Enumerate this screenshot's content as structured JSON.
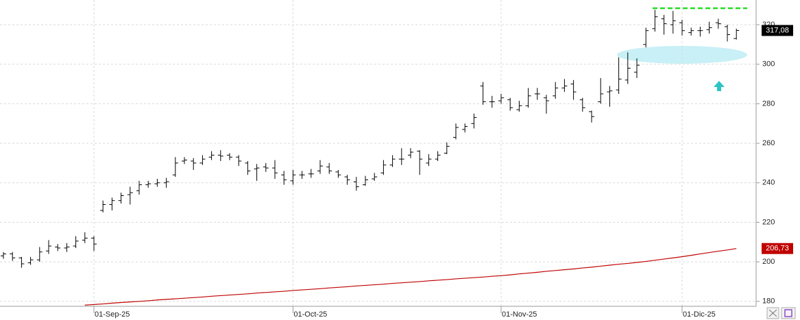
{
  "chart_data": {
    "type": "ohlc",
    "categories": [
      null,
      null,
      null,
      null,
      null,
      null,
      null,
      null,
      null,
      null,
      "01-Sep-25",
      null,
      null,
      null,
      null,
      null,
      null,
      null,
      null,
      null,
      null,
      null,
      null,
      null,
      null,
      null,
      null,
      null,
      null,
      null,
      null,
      null,
      "01-Oct-25",
      null,
      null,
      null,
      null,
      null,
      null,
      null,
      null,
      null,
      null,
      null,
      null,
      null,
      null,
      null,
      null,
      null,
      null,
      null,
      null,
      null,
      null,
      "01-Nov-25",
      null,
      null,
      null,
      null,
      null,
      null,
      null,
      null,
      null,
      null,
      null,
      null,
      null,
      null,
      null,
      null,
      null,
      null,
      null,
      "01-Dic-25",
      null,
      null,
      null,
      null,
      null,
      null
    ],
    "ohlc": {
      "color": "#000000",
      "last_label": "317,08",
      "open": [
        203.0,
        204.0,
        202.0,
        199.5,
        201.0,
        205.5,
        207.5,
        207.0,
        208.0,
        211.0,
        212.0,
        226.0,
        229.0,
        231.0,
        234.0,
        236.0,
        239.0,
        239.5,
        240.0,
        244.0,
        251.0,
        251.0,
        250.0,
        253.0,
        254.0,
        254.0,
        253.0,
        250.0,
        247.0,
        248.0,
        247.5,
        244.0,
        241.0,
        244.0,
        244.5,
        246.0,
        248.0,
        245.5,
        243.0,
        240.5,
        239.0,
        242.0,
        245.0,
        249.0,
        252.0,
        254.0,
        256.0,
        250.0,
        252.0,
        255.0,
        263.0,
        267.0,
        270.0,
        289.0,
        281.0,
        281.5,
        282.0,
        277.0,
        279.0,
        285.0,
        283.0,
        284.0,
        288.0,
        290.0,
        282.0,
        276.0,
        281.0,
        286.0,
        287.0,
        292.0,
        296.0,
        310.0,
        318.0,
        323.0,
        320.0,
        321.0,
        316.0,
        317.0,
        317.5,
        321.0,
        319.0,
        313.0
      ],
      "high": [
        205.0,
        205.0,
        202.5,
        202.5,
        207.5,
        211.0,
        209.0,
        209.5,
        213.0,
        215.0,
        213.0,
        231.0,
        232.5,
        235.0,
        238.0,
        241.0,
        241.0,
        242.0,
        242.5,
        253.0,
        253.0,
        252.5,
        254.0,
        256.0,
        256.5,
        255.0,
        254.0,
        251.0,
        249.5,
        250.0,
        251.5,
        246.0,
        246.5,
        246.0,
        247.0,
        251.5,
        250.0,
        246.5,
        244.0,
        243.0,
        243.5,
        245.0,
        251.5,
        254.0,
        257.5,
        257.5,
        256.5,
        254.5,
        256.0,
        260.5,
        270.0,
        270.0,
        275.0,
        291.0,
        284.0,
        285.0,
        283.0,
        281.5,
        288.0,
        288.0,
        284.5,
        291.0,
        292.5,
        292.0,
        283.0,
        276.5,
        293.0,
        289.0,
        303.5,
        306.0,
        303.0,
        318.5,
        327.5,
        325.0,
        327.0,
        322.5,
        318.5,
        319.0,
        321.5,
        323.0,
        320.0,
        318.0
      ],
      "low": [
        201.5,
        200.5,
        197.0,
        198.5,
        200.0,
        204.0,
        205.5,
        205.0,
        207.0,
        209.5,
        205.5,
        225.0,
        226.0,
        229.5,
        229.0,
        234.0,
        237.5,
        238.0,
        237.5,
        243.0,
        249.5,
        246.5,
        249.0,
        251.5,
        251.0,
        251.5,
        248.5,
        244.0,
        241.0,
        245.5,
        242.0,
        239.0,
        239.0,
        242.0,
        242.5,
        244.5,
        244.5,
        242.5,
        239.0,
        236.0,
        238.5,
        241.0,
        244.0,
        248.0,
        249.0,
        252.5,
        244.0,
        248.5,
        251.0,
        254.5,
        262.0,
        265.5,
        267.5,
        279.5,
        278.0,
        280.0,
        276.5,
        276.0,
        278.0,
        282.0,
        275.0,
        282.5,
        286.0,
        282.0,
        276.0,
        270.5,
        280.0,
        278.5,
        285.0,
        290.0,
        293.0,
        308.5,
        316.5,
        315.0,
        315.5,
        314.5,
        314.5,
        314.0,
        315.5,
        318.0,
        311.5,
        312.5
      ],
      "close": [
        204.0,
        202.0,
        199.0,
        201.0,
        205.0,
        208.0,
        207.0,
        207.5,
        210.5,
        212.0,
        209.0,
        229.0,
        231.0,
        233.5,
        235.0,
        239.0,
        239.5,
        240.0,
        240.5,
        250.0,
        251.5,
        250.0,
        252.0,
        254.0,
        253.5,
        253.0,
        251.0,
        246.0,
        247.5,
        247.5,
        245.0,
        241.5,
        244.0,
        244.0,
        244.5,
        248.5,
        246.0,
        244.0,
        241.5,
        238.0,
        241.5,
        243.0,
        249.0,
        252.0,
        252.0,
        255.5,
        252.0,
        252.0,
        254.0,
        258.5,
        268.0,
        268.5,
        273.0,
        281.0,
        281.0,
        283.0,
        278.0,
        279.0,
        284.0,
        285.0,
        281.5,
        288.0,
        289.0,
        286.0,
        278.0,
        273.5,
        285.0,
        286.5,
        292.5,
        298.0,
        299.5,
        317.0,
        324.0,
        320.5,
        322.0,
        317.0,
        317.0,
        317.0,
        318.5,
        320.5,
        315.0,
        317.08
      ]
    },
    "ma": {
      "color": "#c00000",
      "last_label": "206,73",
      "values": [
        null,
        null,
        null,
        null,
        null,
        null,
        null,
        null,
        null,
        178.1,
        178.4,
        178.7,
        179.1,
        179.4,
        179.7,
        180.0,
        180.3,
        180.7,
        181.0,
        181.3,
        181.6,
        181.9,
        182.2,
        182.6,
        182.9,
        183.2,
        183.5,
        183.8,
        184.2,
        184.5,
        184.8,
        185.1,
        185.5,
        185.8,
        186.1,
        186.4,
        186.8,
        187.1,
        187.4,
        187.8,
        188.1,
        188.4,
        188.7,
        189.1,
        189.4,
        189.7,
        190.0,
        190.4,
        190.7,
        191.0,
        191.4,
        191.7,
        192.0,
        192.3,
        192.7,
        193.0,
        193.4,
        193.9,
        194.3,
        194.7,
        195.2,
        195.6,
        196.0,
        196.4,
        196.9,
        197.3,
        197.8,
        198.3,
        198.8,
        199.2,
        199.7,
        200.2,
        200.8,
        201.4,
        202.0,
        202.6,
        203.3,
        204.0,
        204.7,
        205.4,
        206.0,
        206.73
      ]
    },
    "ylim": [
      177.5,
      332.5
    ],
    "yticks": [
      180,
      200,
      220,
      240,
      260,
      280,
      300,
      320
    ],
    "grid": true
  }
}
